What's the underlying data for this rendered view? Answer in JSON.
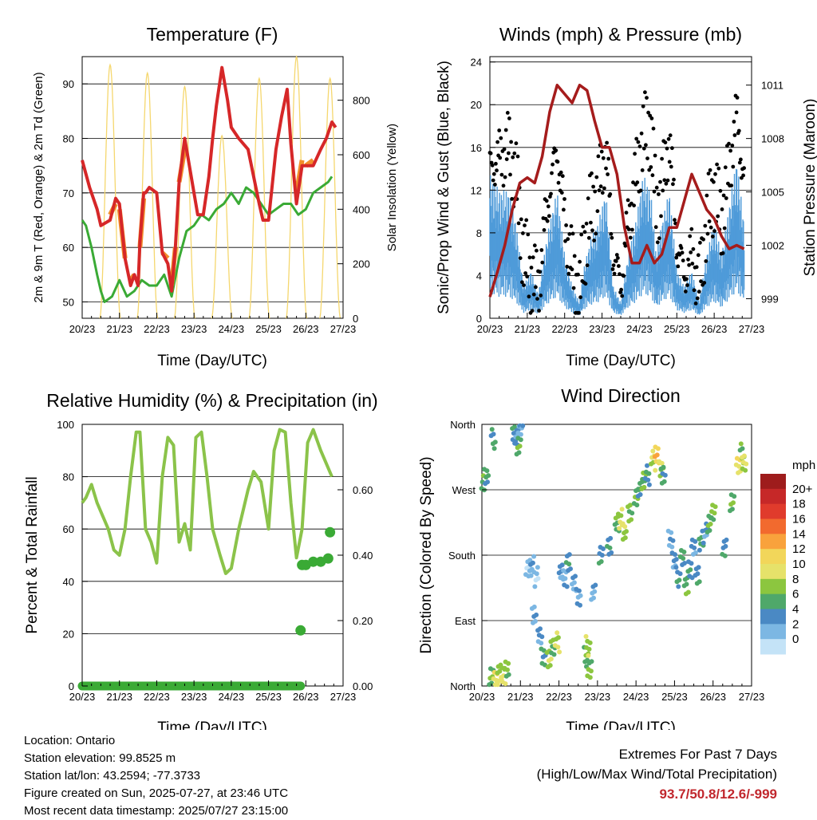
{
  "colors": {
    "temp_2m": "#d62728",
    "temp_9m": "#f28e2b",
    "dewpoint": "#3aaa35",
    "solar": "#f5d76e",
    "wind_sonic": "#4f9bd9",
    "gust": "#000000",
    "pressure": "#a51c1c",
    "rh": "#8bc34a",
    "precip": "#3aaa35",
    "extremes": "#c1272d"
  },
  "x_ticks": [
    "20/23",
    "21/23",
    "22/23",
    "23/23",
    "24/23",
    "25/23",
    "26/23",
    "27/23"
  ],
  "chart_data": [
    {
      "id": "temperature",
      "type": "line",
      "title": "Temperature (F)",
      "xlabel": "Time (Day/UTC)",
      "ylabel": "2m & 9m T (Red, Orange) & 2m Td (Green)",
      "ylabel_right": "Solar Insolation (Yellow)",
      "ylim": [
        47,
        95
      ],
      "ylim_right": [
        0,
        960
      ],
      "yticks": [
        50,
        60,
        70,
        80,
        90
      ],
      "yticks_right": [
        0,
        200,
        400,
        600,
        800
      ],
      "x_range_days": [
        0,
        7
      ],
      "series": [
        {
          "name": "2m T",
          "color": "#d62728",
          "x": [
            0,
            0.2,
            0.4,
            0.5,
            0.75,
            0.9,
            1.0,
            1.15,
            1.3,
            1.4,
            1.5,
            1.55,
            1.65,
            1.7,
            1.8,
            2.0,
            2.15,
            2.3,
            2.4,
            2.5,
            2.6,
            2.75,
            2.9,
            3.1,
            3.25,
            3.4,
            3.5,
            3.6,
            3.75,
            3.9,
            4.0,
            4.2,
            4.45,
            4.6,
            4.75,
            4.85,
            5.0,
            5.2,
            5.35,
            5.5,
            5.6,
            5.75,
            5.9,
            6.0,
            6.2,
            6.4,
            6.55,
            6.7,
            6.8
          ],
          "y": [
            76,
            71,
            67,
            64,
            65,
            69,
            68,
            58,
            53,
            55,
            53,
            61,
            70,
            70,
            71,
            70,
            59,
            57,
            52,
            60,
            72,
            80,
            74,
            66,
            66,
            73,
            80,
            86,
            93,
            87,
            82,
            80,
            78,
            73,
            68,
            65,
            65,
            78,
            84,
            89,
            79,
            68,
            75,
            75,
            75,
            78,
            80,
            83,
            82
          ]
        },
        {
          "name": "9m T",
          "color": "#f28e2b",
          "x": [
            0.75,
            0.9,
            1.0,
            1.15,
            1.3,
            1.4,
            1.55,
            1.65,
            2.15,
            2.3,
            2.4,
            2.5,
            2.6,
            2.75,
            5.75,
            5.9,
            6.0,
            6.2
          ],
          "y": [
            66,
            68,
            67,
            58,
            54,
            55,
            60,
            69,
            59,
            58,
            53,
            60,
            72,
            78,
            70,
            76,
            75,
            76
          ]
        },
        {
          "name": "2m Td",
          "color": "#3aaa35",
          "x": [
            0,
            0.1,
            0.25,
            0.4,
            0.5,
            0.6,
            0.8,
            1.0,
            1.2,
            1.4,
            1.6,
            1.8,
            2.0,
            2.2,
            2.4,
            2.6,
            2.8,
            3.0,
            3.2,
            3.4,
            3.6,
            3.8,
            4.0,
            4.2,
            4.4,
            4.6,
            4.8,
            5.0,
            5.2,
            5.4,
            5.6,
            5.8,
            6.0,
            6.2,
            6.4,
            6.6,
            6.7
          ],
          "y": [
            65,
            64,
            60,
            55,
            52,
            50,
            51,
            54,
            51,
            52,
            54,
            53,
            53,
            55,
            51,
            58,
            63,
            64,
            66,
            65,
            67,
            68,
            70,
            68,
            71,
            70,
            68,
            66,
            67,
            68,
            68,
            66,
            67,
            70,
            71,
            72,
            73
          ]
        }
      ],
      "solar_peaks_day": [
        0.75,
        1.75,
        2.75,
        3.75,
        4.75,
        5.75,
        6.65
      ],
      "solar_peak_values": [
        930,
        900,
        850,
        670,
        880,
        960,
        880
      ]
    },
    {
      "id": "winds",
      "type": "line",
      "title": "Winds (mph) & Pressure (mb)",
      "xlabel": "Time (Day/UTC)",
      "ylabel": "Sonic/Prop Wind & Gust (Blue, Black)",
      "ylabel_right": "Station Pressure (Maroon)",
      "ylim": [
        0,
        24.5
      ],
      "ylim_right": [
        997.9,
        1012.6
      ],
      "yticks": [
        0,
        4,
        8,
        12,
        16,
        20,
        24
      ],
      "yticks_right": [
        999,
        1002,
        1005,
        1008,
        1011
      ],
      "x_range_days": [
        0,
        7
      ],
      "pressure": {
        "x": [
          0,
          0.2,
          0.4,
          0.6,
          0.8,
          1.0,
          1.2,
          1.4,
          1.6,
          1.8,
          2.0,
          2.2,
          2.4,
          2.6,
          2.8,
          3.0,
          3.2,
          3.4,
          3.6,
          3.8,
          4.0,
          4.2,
          4.4,
          4.6,
          4.8,
          5.0,
          5.2,
          5.4,
          5.6,
          5.8,
          6.0,
          6.2,
          6.4,
          6.6,
          6.8
        ],
        "y": [
          999.1,
          1000.5,
          1002,
          1004,
          1005.5,
          1005.8,
          1005.5,
          1007,
          1009.5,
          1011,
          1010.5,
          1010,
          1011,
          1010.7,
          1009,
          1007.5,
          1007.5,
          1006,
          1003,
          1001,
          1001,
          1002,
          1001,
          1001.5,
          1003,
          1003,
          1004.5,
          1006,
          1005,
          1004,
          1003.5,
          1002.5,
          1001.8,
          1002,
          1001.8
        ]
      },
      "wind": {
        "x": [
          0,
          0.25,
          0.5,
          0.7,
          0.9,
          1.1,
          1.3,
          1.45,
          1.6,
          1.8,
          2.0,
          2.2,
          2.4,
          2.5,
          2.7,
          2.9,
          3.1,
          3.3,
          3.5,
          3.7,
          3.9,
          4.1,
          4.3,
          4.45,
          4.6,
          4.8,
          5.0,
          5.2,
          5.4,
          5.6,
          5.8,
          6.0,
          6.2,
          6.4,
          6.6,
          6.8
        ],
        "y": [
          9,
          8,
          8,
          6,
          2,
          3,
          1.5,
          4,
          6,
          8,
          4,
          2,
          1,
          3,
          5,
          6,
          8,
          2,
          1,
          4,
          6,
          9,
          8,
          4,
          6,
          8,
          3,
          2,
          3,
          1,
          4,
          6,
          4,
          7,
          10,
          6
        ]
      },
      "gust": {
        "x": [
          0,
          0.25,
          0.5,
          0.7,
          0.9,
          1.1,
          1.3,
          1.45,
          1.6,
          1.8,
          2.0,
          2.2,
          2.4,
          2.5,
          2.7,
          2.9,
          3.1,
          3.3,
          3.5,
          3.7,
          3.9,
          4.1,
          4.3,
          4.45,
          4.6,
          4.8,
          5.0,
          5.2,
          5.4,
          5.6,
          5.8,
          6.0,
          6.2,
          6.4,
          6.6,
          6.8
        ],
        "y": [
          14,
          15,
          16,
          13,
          6,
          4,
          3,
          8,
          12,
          16,
          9,
          5,
          2,
          6,
          10,
          12,
          16,
          6,
          3,
          9,
          13,
          17,
          18,
          10,
          12,
          17,
          7,
          4,
          6,
          3,
          9,
          12,
          9,
          14,
          19,
          13
        ]
      }
    },
    {
      "id": "humidity",
      "type": "line",
      "title": "Relative Humidity (%) & Precipitation (in)",
      "xlabel": "Time (Day/UTC)",
      "ylabel": "Percent & Total Rainfall",
      "ylim": [
        0,
        100
      ],
      "ylim_right": [
        0,
        0.8
      ],
      "yticks": [
        0,
        20,
        40,
        60,
        80,
        100
      ],
      "yticks_right": [
        "0.00",
        "0.20",
        "0.40",
        "0.60"
      ],
      "x_range_days": [
        0,
        7
      ],
      "rh": {
        "x": [
          0,
          0.1,
          0.25,
          0.4,
          0.55,
          0.7,
          0.85,
          1.0,
          1.15,
          1.3,
          1.45,
          1.55,
          1.7,
          1.85,
          2.0,
          2.15,
          2.3,
          2.45,
          2.6,
          2.75,
          2.9,
          3.05,
          3.2,
          3.35,
          3.5,
          3.7,
          3.85,
          4.0,
          4.2,
          4.45,
          4.6,
          4.8,
          5.0,
          5.15,
          5.3,
          5.45,
          5.6,
          5.75,
          5.9,
          6.05,
          6.2,
          6.4,
          6.55,
          6.7
        ],
        "y": [
          70,
          72,
          77,
          70,
          65,
          60,
          52,
          50,
          60,
          80,
          97,
          97,
          60,
          55,
          47,
          80,
          95,
          92,
          55,
          62,
          52,
          95,
          97,
          80,
          60,
          50,
          43,
          45,
          60,
          75,
          82,
          78,
          60,
          90,
          98,
          97,
          70,
          49,
          60,
          93,
          98,
          90,
          85,
          80
        ]
      },
      "precip": {
        "x": [
          0,
          1,
          2,
          3,
          4,
          5,
          5.85,
          5.86,
          5.9,
          6.0,
          6.2,
          6.4,
          6.6,
          6.65
        ],
        "y": [
          0,
          0,
          0,
          0,
          0,
          0,
          0,
          0.17,
          0.37,
          0.37,
          0.38,
          0.38,
          0.39,
          0.47
        ]
      }
    },
    {
      "id": "wind_direction",
      "type": "scatter",
      "title": "Wind Direction",
      "xlabel": "Time (Day/UTC)",
      "ylabel": "Direction (Colored By Speed)",
      "ylim": [
        0,
        360
      ],
      "yticks": [
        "North",
        "East",
        "South",
        "West",
        "North"
      ],
      "colorbar_title": "mph",
      "colorbar_labels": [
        "20+",
        "18",
        "16",
        "14",
        "12",
        "10",
        "8",
        "6",
        "4",
        "2",
        "0"
      ],
      "colorbar_colors": [
        "#9e1c1c",
        "#c62828",
        "#e03b2c",
        "#f26a2e",
        "#f9a23c",
        "#f2d65a",
        "#e6e26a",
        "#8cc63f",
        "#4fa86a",
        "#4a89c4",
        "#7cb7e3",
        "#c4e3f7"
      ],
      "x_range_days": [
        0,
        7
      ],
      "points": [
        {
          "x": 0.05,
          "y": 285,
          "s": 6
        },
        {
          "x": 0.12,
          "y": 283,
          "s": 5
        },
        {
          "x": 0.25,
          "y": 15,
          "s": 6
        },
        {
          "x": 0.35,
          "y": 10,
          "s": 10
        },
        {
          "x": 0.45,
          "y": 18,
          "s": 8
        },
        {
          "x": 0.55,
          "y": 12,
          "s": 9
        },
        {
          "x": 0.65,
          "y": 20,
          "s": 7
        },
        {
          "x": 0.3,
          "y": 340,
          "s": 5
        },
        {
          "x": 0.85,
          "y": 350,
          "s": 4
        },
        {
          "x": 0.9,
          "y": 345,
          "s": 3
        },
        {
          "x": 0.95,
          "y": 330,
          "s": 6
        },
        {
          "x": 1.0,
          "y": 355,
          "s": 2
        },
        {
          "x": 1.2,
          "y": 160,
          "s": 1
        },
        {
          "x": 1.3,
          "y": 165,
          "s": 2
        },
        {
          "x": 1.4,
          "y": 150,
          "s": 1
        },
        {
          "x": 1.35,
          "y": 100,
          "s": 2
        },
        {
          "x": 1.5,
          "y": 70,
          "s": 3
        },
        {
          "x": 1.6,
          "y": 40,
          "s": 5
        },
        {
          "x": 1.75,
          "y": 35,
          "s": 8
        },
        {
          "x": 1.85,
          "y": 50,
          "s": 6
        },
        {
          "x": 1.95,
          "y": 60,
          "s": 9
        },
        {
          "x": 2.05,
          "y": 160,
          "s": 3
        },
        {
          "x": 2.15,
          "y": 150,
          "s": 2
        },
        {
          "x": 2.25,
          "y": 170,
          "s": 4
        },
        {
          "x": 2.4,
          "y": 140,
          "s": 2
        },
        {
          "x": 2.5,
          "y": 120,
          "s": 3
        },
        {
          "x": 2.7,
          "y": 40,
          "s": 6
        },
        {
          "x": 2.75,
          "y": 55,
          "s": 8
        },
        {
          "x": 2.8,
          "y": 25,
          "s": 7
        },
        {
          "x": 2.9,
          "y": 130,
          "s": 2
        },
        {
          "x": 3.1,
          "y": 180,
          "s": 4
        },
        {
          "x": 3.3,
          "y": 190,
          "s": 4
        },
        {
          "x": 3.5,
          "y": 220,
          "s": 6
        },
        {
          "x": 3.6,
          "y": 230,
          "s": 9
        },
        {
          "x": 3.7,
          "y": 215,
          "s": 8
        },
        {
          "x": 3.85,
          "y": 240,
          "s": 7
        },
        {
          "x": 4.0,
          "y": 260,
          "s": 6
        },
        {
          "x": 4.1,
          "y": 270,
          "s": 5
        },
        {
          "x": 4.2,
          "y": 280,
          "s": 7
        },
        {
          "x": 4.3,
          "y": 290,
          "s": 4
        },
        {
          "x": 4.45,
          "y": 310,
          "s": 9
        },
        {
          "x": 4.55,
          "y": 320,
          "s": 12
        },
        {
          "x": 4.65,
          "y": 300,
          "s": 8
        },
        {
          "x": 4.7,
          "y": 290,
          "s": 5
        },
        {
          "x": 4.9,
          "y": 200,
          "s": 2
        },
        {
          "x": 5.0,
          "y": 170,
          "s": 3
        },
        {
          "x": 5.1,
          "y": 150,
          "s": 4
        },
        {
          "x": 5.2,
          "y": 180,
          "s": 5
        },
        {
          "x": 5.3,
          "y": 140,
          "s": 6
        },
        {
          "x": 5.4,
          "y": 160,
          "s": 4
        },
        {
          "x": 5.5,
          "y": 190,
          "s": 3
        },
        {
          "x": 5.6,
          "y": 150,
          "s": 4
        },
        {
          "x": 5.7,
          "y": 200,
          "s": 5
        },
        {
          "x": 5.8,
          "y": 210,
          "s": 3
        },
        {
          "x": 5.9,
          "y": 225,
          "s": 6
        },
        {
          "x": 6.0,
          "y": 240,
          "s": 7
        },
        {
          "x": 6.3,
          "y": 190,
          "s": 4
        },
        {
          "x": 6.5,
          "y": 250,
          "s": 6
        },
        {
          "x": 6.65,
          "y": 300,
          "s": 10
        },
        {
          "x": 6.75,
          "y": 320,
          "s": 7
        },
        {
          "x": 6.8,
          "y": 310,
          "s": 9
        }
      ]
    }
  ],
  "info": {
    "location": "Location: Ontario",
    "elevation": "Station elevation: 99.8525 m",
    "latlon": "Station lat/lon: 43.2594; -77.3733",
    "created": "Figure created on Sun, 2025-07-27, at 23:46 UTC",
    "recent": "Most recent data timestamp: 2025/07/27 23:15:00"
  },
  "extremes": {
    "line1": "Extremes For Past 7 Days",
    "line2": "(High/Low/Max Wind/Total Precipitation)",
    "values": "93.7/50.8/12.6/-999"
  }
}
